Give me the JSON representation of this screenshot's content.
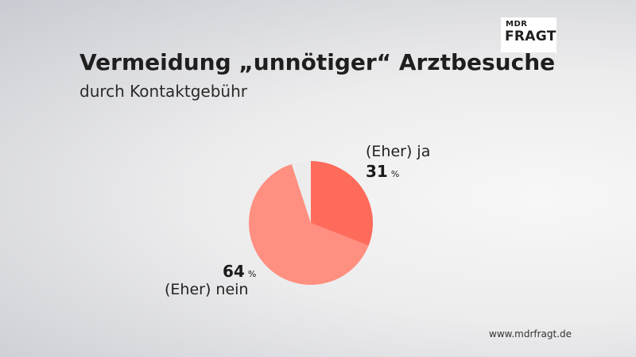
{
  "logo": {
    "top_text": "MDR",
    "bottom_text": "FRAGT"
  },
  "chart_data": {
    "type": "pie",
    "title": "Vermeidung „unnötiger“ Arztbesuche",
    "subtitle": "durch Kontaktgebühr",
    "slices": [
      {
        "label": "(Eher) ja",
        "value": 31,
        "display": "31",
        "unit": "%",
        "color": "#ff6b5b"
      },
      {
        "label": "(Eher) nein",
        "value": 64,
        "display": "64",
        "unit": "%",
        "color": "#ff8f80"
      },
      {
        "label": "",
        "value": 5,
        "display": "",
        "unit": "",
        "color": "#ececec"
      }
    ]
  },
  "source": "www.mdrfragt.de"
}
